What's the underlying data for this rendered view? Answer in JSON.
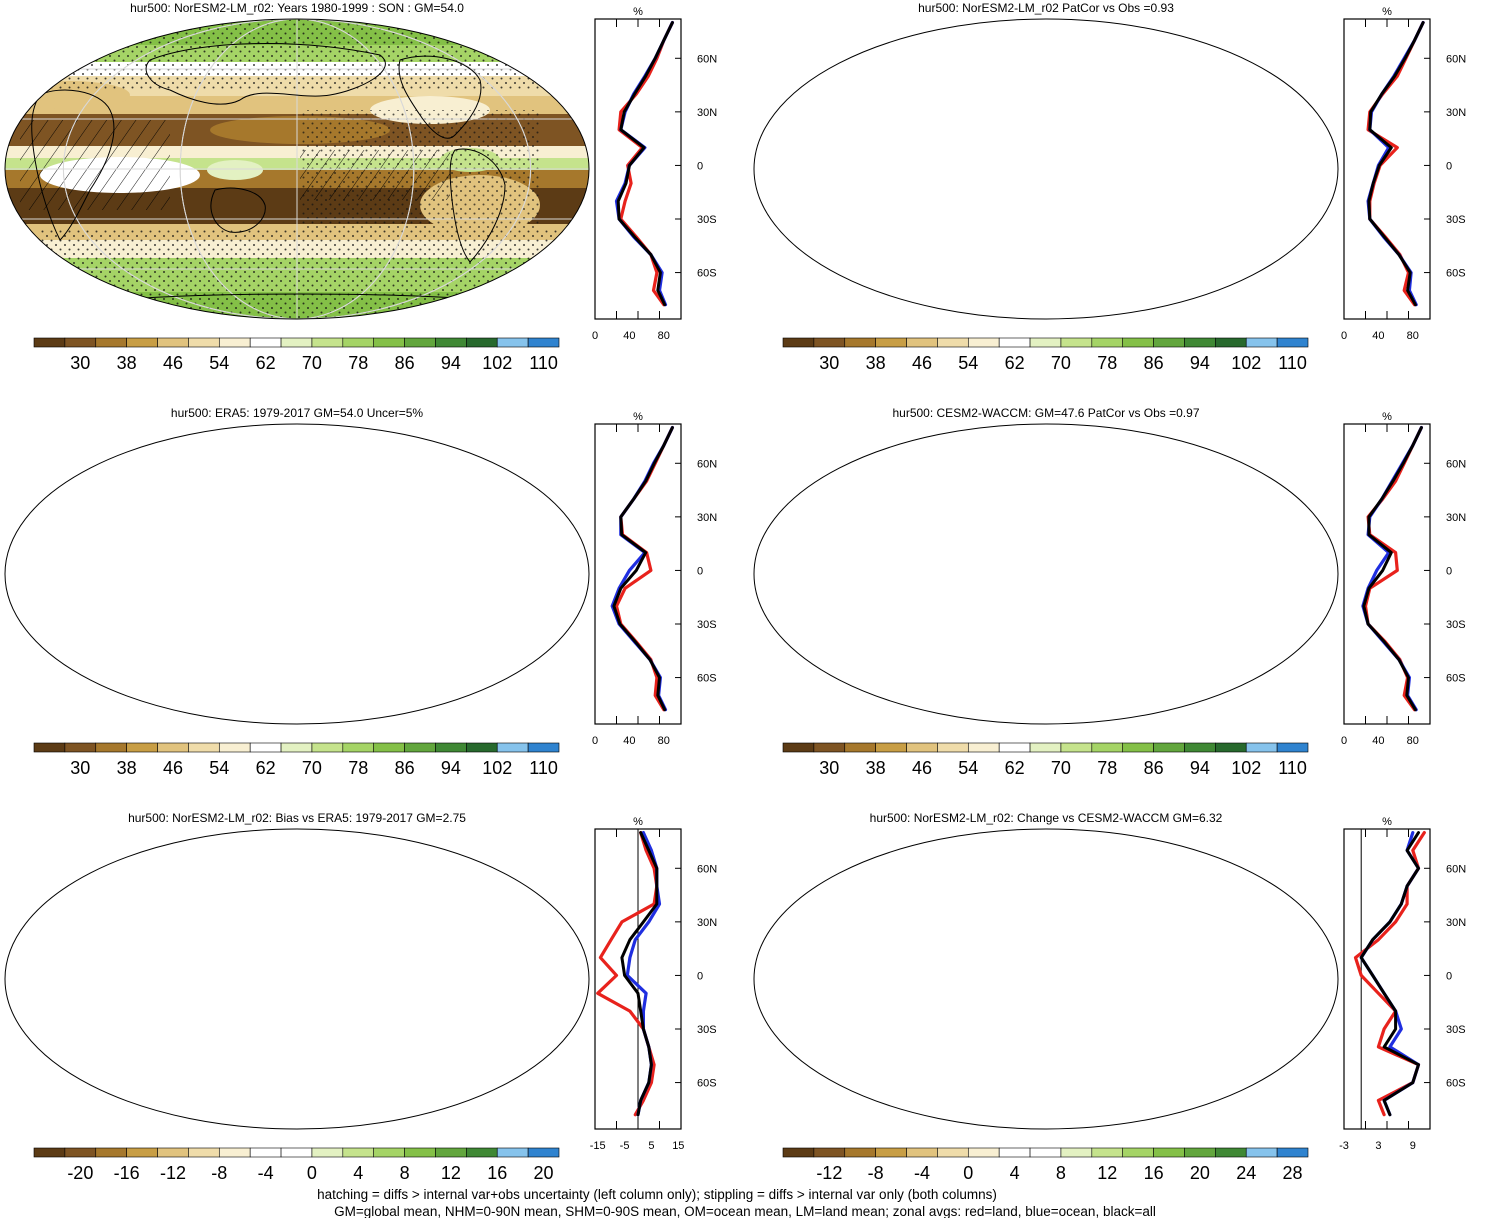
{
  "figure": {
    "footnote_lines": [
      "hatching = diffs > internal var+obs uncertainty (left column only); stippling = diffs > internal var only (both columns)",
      "GM=global mean, NHM=0-90N mean, SHM=0-90S mean, OM=ocean mean, LM=land mean; zonal avgs: red=land, blue=ocean, black=all"
    ],
    "colors": {
      "land": "#e8221c",
      "ocean": "#1f2ee0",
      "all": "#000000"
    }
  },
  "chart_data": [
    {
      "type": "heatmap",
      "title": "hur500: NorESM2-LM_r02: Years 1980-1999 : SON : GM=54.0",
      "palette": "absolute",
      "colorbar_labels": [
        "30",
        "38",
        "46",
        "54",
        "62",
        "70",
        "78",
        "86",
        "94",
        "102",
        "110"
      ],
      "zonal_profile": {
        "type": "line",
        "unit_label": "%",
        "xlim": [
          0,
          100
        ],
        "x_ticks": [
          "0",
          "40",
          "80"
        ],
        "y_ticks": [
          "60N",
          "30N",
          "0",
          "30S",
          "60S"
        ],
        "latitudes": [
          80,
          70,
          60,
          50,
          40,
          30,
          20,
          10,
          0,
          -10,
          -20,
          -30,
          -40,
          -50,
          -60,
          -70,
          -78
        ],
        "series": [
          {
            "name": "land",
            "values": [
              90,
              80,
              72,
              62,
              48,
              30,
              28,
              55,
              38,
              42,
              35,
              30,
              48,
              65,
              72,
              68,
              80
            ]
          },
          {
            "name": "ocean",
            "values": [
              90,
              80,
              70,
              58,
              45,
              35,
              30,
              58,
              40,
              35,
              25,
              28,
              45,
              65,
              78,
              75,
              82
            ]
          },
          {
            "name": "all",
            "values": [
              90,
              80,
              70,
              59,
              46,
              34,
              30,
              57,
              40,
              36,
              27,
              28,
              46,
              65,
              76,
              73,
              81
            ]
          }
        ]
      }
    },
    {
      "type": "heatmap",
      "title": "hur500: NorESM2-LM_r02 PatCor vs Obs =0.93",
      "palette": "absolute",
      "colorbar_labels": [
        "30",
        "38",
        "46",
        "54",
        "62",
        "70",
        "78",
        "86",
        "94",
        "102",
        "110"
      ],
      "zonal_profile": {
        "type": "line",
        "unit_label": "%",
        "xlim": [
          0,
          100
        ],
        "x_ticks": [
          "0",
          "40",
          "80"
        ],
        "y_ticks": [
          "60N",
          "30N",
          "0",
          "30S",
          "60S"
        ],
        "latitudes": [
          80,
          70,
          60,
          50,
          40,
          30,
          20,
          10,
          0,
          -10,
          -20,
          -30,
          -40,
          -50,
          -60,
          -70,
          -78
        ],
        "series": [
          {
            "name": "land",
            "values": [
              92,
              82,
              72,
              62,
              45,
              30,
              28,
              62,
              42,
              35,
              30,
              30,
              48,
              65,
              75,
              70,
              82
            ]
          },
          {
            "name": "ocean",
            "values": [
              92,
              82,
              70,
              58,
              44,
              32,
              30,
              52,
              40,
              34,
              28,
              30,
              46,
              64,
              78,
              76,
              84
            ]
          },
          {
            "name": "all",
            "values": [
              92,
              82,
              71,
              59,
              44,
              31,
              30,
              55,
              41,
              34,
              29,
              30,
              47,
              64,
              77,
              74,
              83
            ]
          }
        ]
      }
    },
    {
      "type": "heatmap",
      "title": "hur500: ERA5: 1979-2017 GM=54.0 Uncer=5%",
      "palette": "absolute",
      "colorbar_labels": [
        "30",
        "38",
        "46",
        "54",
        "62",
        "70",
        "78",
        "86",
        "94",
        "102",
        "110"
      ],
      "zonal_profile": {
        "type": "line",
        "unit_label": "%",
        "xlim": [
          0,
          100
        ],
        "x_ticks": [
          "0",
          "40",
          "80"
        ],
        "y_ticks": [
          "60N",
          "30N",
          "0",
          "30S",
          "60S"
        ],
        "latitudes": [
          80,
          70,
          60,
          50,
          40,
          30,
          20,
          10,
          0,
          -10,
          -20,
          -30,
          -40,
          -50,
          -60,
          -70,
          -78
        ],
        "series": [
          {
            "name": "land",
            "values": [
              90,
              80,
              70,
              60,
              45,
              30,
              32,
              60,
              65,
              35,
              25,
              30,
              48,
              65,
              72,
              70,
              80
            ]
          },
          {
            "name": "ocean",
            "values": [
              90,
              80,
              68,
              58,
              45,
              30,
              30,
              58,
              40,
              28,
              20,
              28,
              46,
              64,
              76,
              74,
              82
            ]
          },
          {
            "name": "all",
            "values": [
              90,
              80,
              69,
              59,
              45,
              30,
              31,
              59,
              48,
              30,
              22,
              29,
              47,
              64,
              75,
              73,
              81
            ]
          }
        ]
      }
    },
    {
      "type": "heatmap",
      "title": "hur500: CESM2-WACCM: GM=47.6 PatCor vs Obs =0.97",
      "palette": "absolute",
      "colorbar_labels": [
        "30",
        "38",
        "46",
        "54",
        "62",
        "70",
        "78",
        "86",
        "94",
        "102",
        "110"
      ],
      "zonal_profile": {
        "type": "line",
        "unit_label": "%",
        "xlim": [
          0,
          100
        ],
        "x_ticks": [
          "0",
          "40",
          "80"
        ],
        "y_ticks": [
          "60N",
          "30N",
          "0",
          "30S",
          "60S"
        ],
        "latitudes": [
          80,
          70,
          60,
          50,
          40,
          30,
          20,
          10,
          0,
          -10,
          -20,
          -30,
          -40,
          -50,
          -60,
          -70,
          -78
        ],
        "series": [
          {
            "name": "land",
            "values": [
              90,
              80,
              70,
              60,
              45,
              28,
              30,
              60,
              62,
              30,
              25,
              28,
              48,
              65,
              74,
              70,
              82
            ]
          },
          {
            "name": "ocean",
            "values": [
              90,
              80,
              68,
              56,
              44,
              30,
              28,
              52,
              38,
              28,
              22,
              28,
              46,
              64,
              76,
              74,
              84
            ]
          },
          {
            "name": "all",
            "values": [
              90,
              80,
              69,
              57,
              44,
              29,
              29,
              55,
              45,
              29,
              23,
              28,
              47,
              64,
              75,
              73,
              83
            ]
          }
        ]
      }
    },
    {
      "type": "heatmap",
      "title": "hur500: NorESM2-LM_r02: Bias vs ERA5: 1979-2017  GM=2.75",
      "palette": "bias",
      "colorbar_labels": [
        "-20",
        "-16",
        "-12",
        "-8",
        "-4",
        "0",
        "4",
        "8",
        "12",
        "16",
        "20"
      ],
      "zonal_profile": {
        "type": "line",
        "unit_label": "%",
        "xlim": [
          -16,
          16
        ],
        "x_ticks": [
          "-15",
          "-5",
          "5",
          "15"
        ],
        "y_ticks": [
          "60N",
          "30N",
          "0",
          "30S",
          "60S"
        ],
        "latitudes": [
          80,
          70,
          60,
          50,
          40,
          30,
          20,
          10,
          0,
          -10,
          -20,
          -30,
          -40,
          -50,
          -60,
          -70,
          -78
        ],
        "series": [
          {
            "name": "land",
            "values": [
              1,
              3,
              6,
              7,
              6,
              -6,
              -10,
              -14,
              -8,
              -15,
              -3,
              2,
              4,
              6,
              5,
              2,
              -1
            ]
          },
          {
            "name": "ocean",
            "values": [
              2,
              5,
              7,
              7,
              8,
              4,
              -1,
              -3,
              -4,
              3,
              2,
              2,
              4,
              5,
              4,
              1,
              0
            ]
          },
          {
            "name": "all",
            "values": [
              1,
              4,
              7,
              7,
              7,
              2,
              -3,
              -6,
              -5,
              0,
              1,
              2,
              4,
              5,
              4,
              1,
              0
            ]
          }
        ]
      }
    },
    {
      "type": "heatmap",
      "title": "hur500: NorESM2-LM_r02: Change vs CESM2-WACCM GM=6.32",
      "palette": "change",
      "colorbar_labels": [
        "-12",
        "-8",
        "-4",
        "0",
        "4",
        "8",
        "12",
        "16",
        "20",
        "24",
        "28"
      ],
      "zonal_profile": {
        "type": "line",
        "unit_label": "%",
        "xlim": [
          -3,
          12
        ],
        "x_ticks": [
          "-3",
          "3",
          "9"
        ],
        "y_ticks": [
          "60N",
          "30N",
          "0",
          "30S",
          "60S"
        ],
        "latitudes": [
          80,
          70,
          60,
          50,
          40,
          30,
          20,
          10,
          0,
          -10,
          -20,
          -30,
          -40,
          -50,
          -60,
          -70,
          -78
        ],
        "series": [
          {
            "name": "land",
            "values": [
              11,
              9,
              10,
              8,
              8,
              6,
              3,
              -1,
              0,
              3,
              6,
              4,
              3,
              10,
              9,
              3,
              4
            ]
          },
          {
            "name": "ocean",
            "values": [
              9,
              8,
              10,
              8,
              7,
              5,
              2,
              0,
              2,
              4,
              6,
              7,
              5,
              10,
              9,
              4,
              5
            ]
          },
          {
            "name": "all",
            "values": [
              10,
              8,
              10,
              8,
              7,
              5,
              2,
              0,
              2,
              4,
              6,
              6,
              4,
              10,
              9,
              4,
              5
            ]
          }
        ]
      }
    }
  ]
}
